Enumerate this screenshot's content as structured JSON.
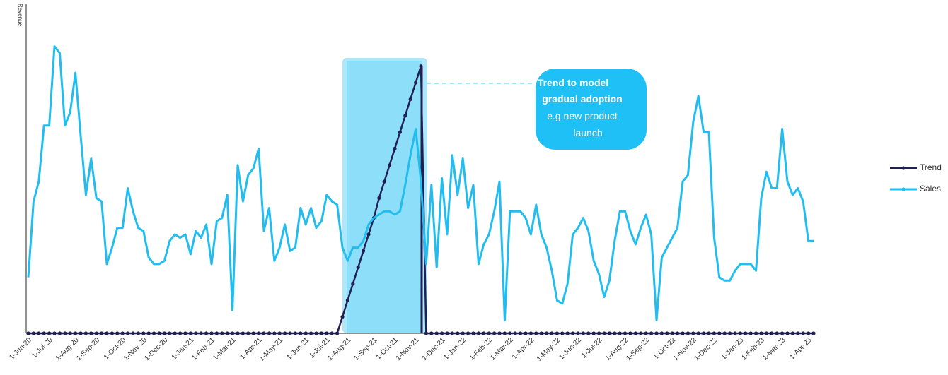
{
  "chart_data": {
    "type": "line",
    "y_label": "Revenue",
    "ylim": [
      0,
      100
    ],
    "annotation": {
      "title_lines": [
        "Trend to model",
        "gradual adoption"
      ],
      "body_lines": [
        "e.g new product",
        "launch"
      ]
    },
    "categories": [
      "1-Jun-20",
      null,
      null,
      null,
      "1-Jul-20",
      null,
      null,
      null,
      null,
      "1-Aug-20",
      null,
      null,
      null,
      "1-Sep-20",
      null,
      null,
      null,
      null,
      "1-Oct-20",
      null,
      null,
      null,
      "1-Nov-20",
      null,
      null,
      null,
      "1-Dec-20",
      null,
      null,
      null,
      null,
      "1-Jan-21",
      null,
      null,
      null,
      "1-Feb-21",
      null,
      null,
      null,
      "1-Mar-21",
      null,
      null,
      null,
      null,
      "1-Apr-21",
      null,
      null,
      null,
      "1-May-21",
      null,
      null,
      null,
      null,
      "1-Jun-21",
      null,
      null,
      null,
      "1-Jul-21",
      null,
      null,
      null,
      "1-Aug-21",
      null,
      null,
      null,
      null,
      "1-Sep-21",
      null,
      null,
      null,
      "1-Oct-21",
      null,
      null,
      null,
      "1-Nov-21",
      null,
      null,
      null,
      null,
      "1-Dec-21",
      null,
      null,
      null,
      "1-Jan-22",
      null,
      null,
      null,
      null,
      "1-Feb-22",
      null,
      null,
      null,
      "1-Mar-22",
      null,
      null,
      null,
      "1-Apr-22",
      null,
      null,
      null,
      null,
      "1-May-22",
      null,
      null,
      null,
      "1-Jun-22",
      null,
      null,
      null,
      "1-Jul-22",
      null,
      null,
      null,
      null,
      "1-Aug-22",
      null,
      null,
      null,
      "1-Sep-22",
      null,
      null,
      null,
      null,
      "1-Oct-22",
      null,
      null,
      null,
      "1-Nov-22",
      null,
      null,
      null,
      "1-Dec-22",
      null,
      null,
      null,
      null,
      "1-Jan-23",
      null,
      null,
      null,
      "1-Feb-23",
      null,
      null,
      null,
      "1-Mar-23",
      null,
      null,
      null,
      null,
      "1-Apr-23",
      null
    ],
    "series": [
      {
        "name": "Trend",
        "color": "#221f52",
        "markers": true,
        "values": [
          0,
          0,
          0,
          0,
          0,
          0,
          0,
          0,
          0,
          0,
          0,
          0,
          0,
          0,
          0,
          0,
          0,
          0,
          0,
          0,
          0,
          0,
          0,
          0,
          0,
          0,
          0,
          0,
          0,
          0,
          0,
          0,
          0,
          0,
          0,
          0,
          0,
          0,
          0,
          0,
          0,
          0,
          0,
          0,
          0,
          0,
          0,
          0,
          0,
          0,
          0,
          0,
          0,
          0,
          0,
          0,
          0,
          0,
          0,
          0,
          5,
          10,
          15,
          20,
          25,
          30,
          35,
          41,
          46,
          51,
          56,
          61,
          66,
          71,
          76,
          81,
          0,
          0,
          0,
          0,
          0,
          0,
          0,
          0,
          0,
          0,
          0,
          0,
          0,
          0,
          0,
          0,
          0,
          0,
          0,
          0,
          0,
          0,
          0,
          0,
          0,
          0,
          0,
          0,
          0,
          0,
          0,
          0,
          0,
          0,
          0,
          0,
          0,
          0,
          0,
          0,
          0,
          0,
          0,
          0,
          0,
          0,
          0,
          0,
          0,
          0,
          0,
          0,
          0,
          0,
          0,
          0,
          0,
          0,
          0,
          0,
          0,
          0,
          0,
          0,
          0,
          0,
          0,
          0,
          0,
          0,
          0,
          0,
          0,
          0,
          0
        ]
      },
      {
        "name": "Sales",
        "color": "#22bdf0",
        "markers": false,
        "values": [
          17,
          40,
          46,
          63,
          63,
          87,
          85,
          63,
          67,
          79,
          60,
          42,
          53,
          41,
          40,
          21,
          26,
          32,
          32,
          44,
          37,
          32,
          31,
          23,
          21,
          21,
          22,
          28,
          30,
          29,
          30,
          24,
          31,
          29,
          33,
          21,
          34,
          35,
          42,
          7,
          51,
          40,
          48,
          50,
          56,
          31,
          38,
          22,
          26,
          33,
          25,
          26,
          38,
          33,
          38,
          32,
          34,
          42,
          40,
          39,
          26,
          22,
          26,
          26,
          28,
          33,
          35,
          36,
          37,
          37,
          36,
          37,
          45,
          54,
          62,
          46,
          21,
          45,
          20,
          47,
          30,
          54,
          42,
          53,
          38,
          45,
          21,
          27,
          30,
          37,
          46,
          4,
          37,
          37,
          37,
          35,
          30,
          39,
          30,
          26,
          19,
          10,
          9,
          15,
          30,
          32,
          35,
          31,
          22,
          18,
          11,
          16,
          28,
          37,
          37,
          31,
          27,
          32,
          36,
          30,
          4,
          23,
          26,
          29,
          32,
          46,
          48,
          64,
          72,
          61,
          61,
          29,
          17,
          16,
          16,
          19,
          21,
          21,
          21,
          19,
          41,
          49,
          44,
          44,
          62,
          46,
          42,
          44,
          40,
          28,
          28
        ]
      }
    ]
  }
}
